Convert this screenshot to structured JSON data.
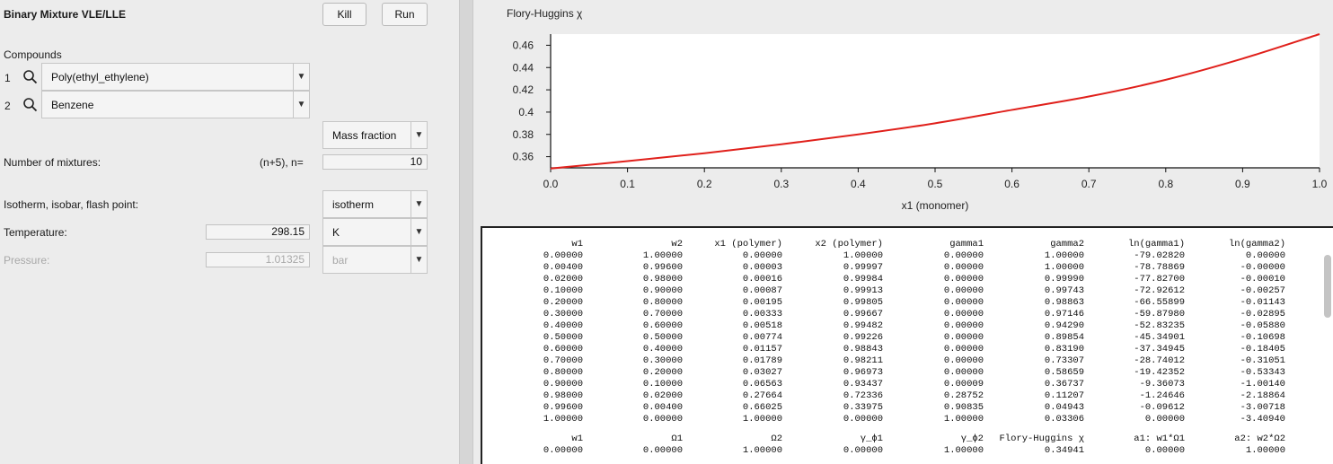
{
  "app": {
    "title": "Binary Mixture VLE/LLE"
  },
  "toolbar": {
    "kill_label": "Kill",
    "run_label": "Run"
  },
  "compounds": {
    "heading": "Compounds",
    "items": [
      {
        "index": "1",
        "name": "Poly(ethyl_ethylene)"
      },
      {
        "index": "2",
        "name": "Benzene"
      }
    ]
  },
  "composition_basis": {
    "selected": "Mass fraction"
  },
  "mixtures": {
    "label": "Number of mixtures:",
    "hint": "(n+5), n=",
    "value": "10"
  },
  "mode": {
    "label": "Isotherm, isobar, flash point:",
    "selected": "isotherm"
  },
  "temperature": {
    "label": "Temperature:",
    "value": "298.15",
    "unit": "K"
  },
  "pressure": {
    "label": "Pressure:",
    "value": "1.01325",
    "unit": "bar"
  },
  "chart_data": {
    "type": "line",
    "title": "Flory-Huggins χ",
    "xlabel": "x1 (monomer)",
    "ylabel": "",
    "xlim": [
      0.0,
      1.0
    ],
    "ylim": [
      0.35,
      0.47
    ],
    "xticks": [
      "0.0",
      "0.1",
      "0.2",
      "0.3",
      "0.4",
      "0.5",
      "0.6",
      "0.7",
      "0.8",
      "0.9",
      "1.0"
    ],
    "yticks": [
      "0.36",
      "0.38",
      "0.4",
      "0.42",
      "0.44",
      "0.46"
    ],
    "grid": false,
    "series": [
      {
        "color": "#e0201b",
        "x": [
          0.0,
          0.1,
          0.2,
          0.3,
          0.4,
          0.5,
          0.6,
          0.7,
          0.8,
          0.9,
          1.0
        ],
        "y": [
          0.3494,
          0.356,
          0.3631,
          0.3711,
          0.38,
          0.39,
          0.402,
          0.414,
          0.429,
          0.448,
          0.47
        ]
      }
    ]
  },
  "table": {
    "headers": [
      "w1",
      "w2",
      "x1 (polymer)",
      "x2 (polymer)",
      "gamma1",
      "gamma2",
      "ln(gamma1)",
      "ln(gamma2)"
    ],
    "rows": [
      [
        "0.00000",
        "1.00000",
        "0.00000",
        "1.00000",
        "0.00000",
        "1.00000",
        "-79.02820",
        "0.00000"
      ],
      [
        "0.00400",
        "0.99600",
        "0.00003",
        "0.99997",
        "0.00000",
        "1.00000",
        "-78.78869",
        "-0.00000"
      ],
      [
        "0.02000",
        "0.98000",
        "0.00016",
        "0.99984",
        "0.00000",
        "0.99990",
        "-77.82700",
        "-0.00010"
      ],
      [
        "0.10000",
        "0.90000",
        "0.00087",
        "0.99913",
        "0.00000",
        "0.99743",
        "-72.92612",
        "-0.00257"
      ],
      [
        "0.20000",
        "0.80000",
        "0.00195",
        "0.99805",
        "0.00000",
        "0.98863",
        "-66.55899",
        "-0.01143"
      ],
      [
        "0.30000",
        "0.70000",
        "0.00333",
        "0.99667",
        "0.00000",
        "0.97146",
        "-59.87980",
        "-0.02895"
      ],
      [
        "0.40000",
        "0.60000",
        "0.00518",
        "0.99482",
        "0.00000",
        "0.94290",
        "-52.83235",
        "-0.05880"
      ],
      [
        "0.50000",
        "0.50000",
        "0.00774",
        "0.99226",
        "0.00000",
        "0.89854",
        "-45.34901",
        "-0.10698"
      ],
      [
        "0.60000",
        "0.40000",
        "0.01157",
        "0.98843",
        "0.00000",
        "0.83190",
        "-37.34945",
        "-0.18405"
      ],
      [
        "0.70000",
        "0.30000",
        "0.01789",
        "0.98211",
        "0.00000",
        "0.73307",
        "-28.74012",
        "-0.31051"
      ],
      [
        "0.80000",
        "0.20000",
        "0.03027",
        "0.96973",
        "0.00000",
        "0.58659",
        "-19.42352",
        "-0.53343"
      ],
      [
        "0.90000",
        "0.10000",
        "0.06563",
        "0.93437",
        "0.00009",
        "0.36737",
        "-9.36073",
        "-1.00140"
      ],
      [
        "0.98000",
        "0.02000",
        "0.27664",
        "0.72336",
        "0.28752",
        "0.11207",
        "-1.24646",
        "-2.18864"
      ],
      [
        "0.99600",
        "0.00400",
        "0.66025",
        "0.33975",
        "0.90835",
        "0.04943",
        "-0.09612",
        "-3.00718"
      ],
      [
        "1.00000",
        "0.00000",
        "1.00000",
        "0.00000",
        "1.00000",
        "0.03306",
        "0.00000",
        "-3.40940"
      ]
    ],
    "headers2": [
      "w1",
      "Ω1",
      "Ω2",
      "γ_ϕ1",
      "γ_ϕ2",
      "Flory-Huggins χ",
      "a1: w1*Ω1",
      "a2: w2*Ω2"
    ],
    "rows2": [
      [
        "0.00000",
        "0.00000",
        "1.00000",
        "0.00000",
        "1.00000",
        "0.34941",
        "0.00000",
        "1.00000"
      ]
    ]
  }
}
